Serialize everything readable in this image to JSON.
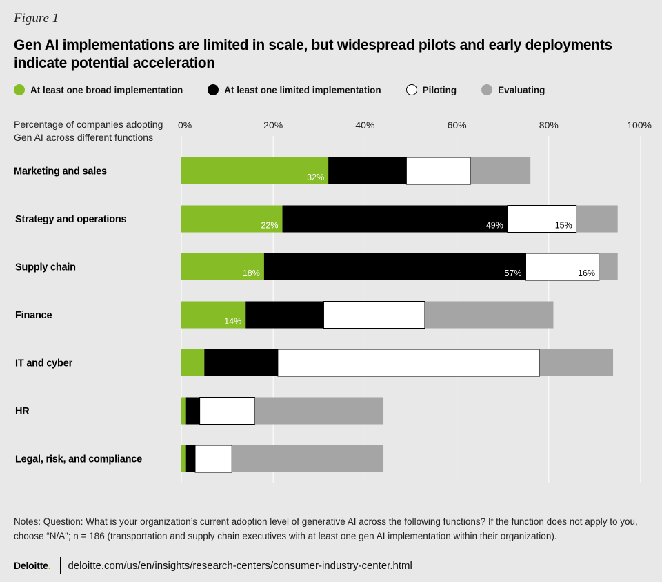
{
  "figure_label": "Figure 1",
  "footer": {
    "brand": "Deloitte",
    "brand_dot": ".",
    "url": "deloitte.com/us/en/insights/research-centers/consumer-industry-center.html"
  },
  "notes": "Notes: Question: What is your organization’s current adoption level of generative AI across the following functions? If the function does not apply to you, choose “N/A”; n = 186 (transportation and supply chain executives with at least one gen AI implementation within their organization).",
  "colors": {
    "broad": "#86bc25",
    "limited": "#000000",
    "piloting": "#ffffff",
    "evaluating": "#a5a5a5",
    "gridline": "#ffffff",
    "background": "#e8e8e8"
  },
  "chart_data": {
    "type": "bar",
    "orientation": "horizontal",
    "stacked": true,
    "title": "Gen AI implementations are limited in scale, but widespread pilots and early deployments indicate potential acceleration",
    "subtitle": "Percentage of companies adopting Gen AI across different functions",
    "xlim": [
      0,
      100
    ],
    "xticks": [
      "0%",
      "20%",
      "40%",
      "60%",
      "80%",
      "100%"
    ],
    "xtick_values": [
      0,
      20,
      40,
      60,
      80,
      100
    ],
    "categories": [
      "Marketing and sales",
      "Strategy and operations",
      "Supply chain",
      "Finance",
      "IT and cyber",
      "HR",
      "Legal, risk, and compliance"
    ],
    "series": [
      {
        "name": "At least one broad implementation",
        "key": "broad",
        "values": [
          32,
          22,
          18,
          14,
          5,
          1,
          1
        ],
        "labels": [
          "32%",
          "22%",
          "18%",
          "14%",
          "",
          "",
          ""
        ]
      },
      {
        "name": "At least one limited implementation",
        "key": "limited",
        "values": [
          17,
          49,
          57,
          17,
          16,
          3,
          2
        ],
        "labels": [
          "",
          "49%",
          "57%",
          "",
          "",
          "",
          ""
        ]
      },
      {
        "name": "Piloting",
        "key": "piloting",
        "values": [
          14,
          15,
          16,
          22,
          57,
          12,
          8
        ],
        "labels": [
          "",
          "15%",
          "16%",
          "",
          "",
          "",
          ""
        ]
      },
      {
        "name": "Evaluating",
        "key": "evaluating",
        "values": [
          13,
          9,
          4,
          28,
          16,
          28,
          33
        ],
        "labels": [
          "",
          "",
          "",
          "",
          "",
          "",
          ""
        ]
      }
    ]
  }
}
